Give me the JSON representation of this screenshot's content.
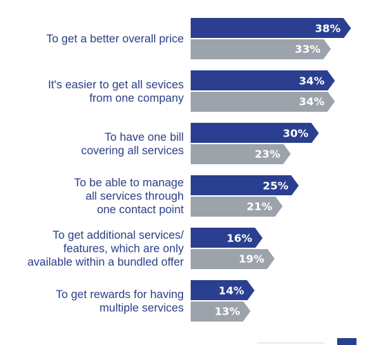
{
  "chart_data": {
    "type": "bar",
    "orientation": "horizontal",
    "categories": [
      [
        "To get a better overall price"
      ],
      [
        "It's easier to get all sevices",
        "from one company"
      ],
      [
        "To have one bill",
        "covering all services"
      ],
      [
        "To be able to manage",
        "all services through",
        "one contact point"
      ],
      [
        "To get additional services/",
        "features, which are only",
        "available within a bundled offer"
      ],
      [
        "To get rewards for having",
        "multiple services"
      ]
    ],
    "series": [
      {
        "values": [
          38,
          34,
          30,
          25,
          16,
          14
        ],
        "labels": [
          "38%",
          "34%",
          "30%",
          "25%",
          "16%",
          "14%"
        ]
      },
      {
        "values": [
          33,
          34,
          23,
          21,
          19,
          13
        ],
        "labels": [
          "33%",
          "34%",
          "23%",
          "21%",
          "19%",
          "13%"
        ]
      }
    ],
    "xlim": [
      0,
      38
    ],
    "unit": "%",
    "grid": false,
    "colors": {
      "series_1": "#2a3f8f",
      "series_2": "#9da3ab",
      "label_text": "#2a3f86",
      "value_text": "#ffffff"
    }
  }
}
